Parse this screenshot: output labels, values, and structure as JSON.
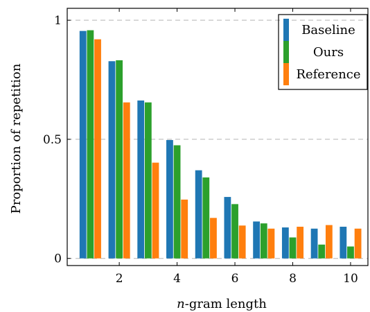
{
  "chart_data": {
    "type": "bar",
    "xlabel_var": "n",
    "xlabel_rest": "-gram length",
    "ylabel": "Proportion of repetition",
    "categories": [
      1,
      2,
      3,
      4,
      5,
      6,
      7,
      8,
      9,
      10
    ],
    "xlim": [
      0.2,
      10.6
    ],
    "ylim": [
      -0.03,
      1.05
    ],
    "x_ticks": [
      2,
      4,
      6,
      8,
      10
    ],
    "y_ticks": [
      0,
      0.5,
      1
    ],
    "y_tick_labels": [
      "0",
      "0.5",
      "1"
    ],
    "grid": "horizontal-dashed",
    "legend_position": "top-right",
    "series": [
      {
        "name": "Baseline",
        "color": "#1f77b4",
        "values": [
          0.955,
          0.828,
          0.663,
          0.497,
          0.37,
          0.258,
          0.155,
          0.13,
          0.125,
          0.133
        ]
      },
      {
        "name": "Ours",
        "color": "#2ca02c",
        "values": [
          0.958,
          0.832,
          0.655,
          0.475,
          0.34,
          0.228,
          0.147,
          0.088,
          0.058,
          0.05
        ]
      },
      {
        "name": "Reference",
        "color": "#ff7f0e",
        "values": [
          0.92,
          0.655,
          0.402,
          0.247,
          0.17,
          0.138,
          0.125,
          0.133,
          0.14,
          0.125
        ]
      }
    ]
  }
}
